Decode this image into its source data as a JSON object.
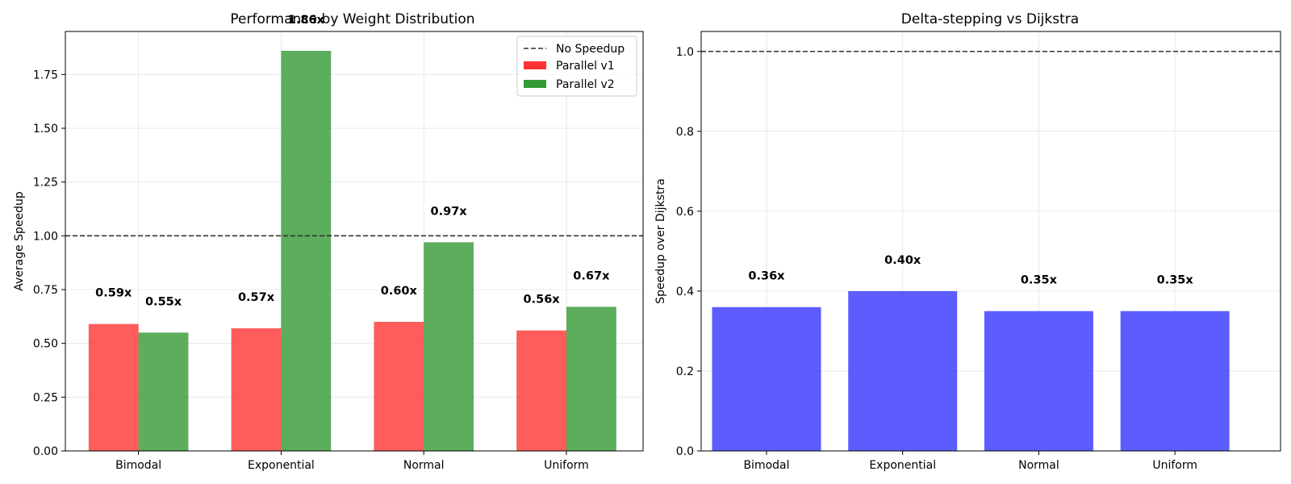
{
  "chart_data": [
    {
      "type": "bar",
      "title": "Performance by Weight Distribution",
      "xlabel": "",
      "ylabel": "Average Speedup",
      "categories": [
        "Bimodal",
        "Exponential",
        "Normal",
        "Uniform"
      ],
      "series": [
        {
          "name": "Parallel v1",
          "color": "#ff3333",
          "values": [
            0.59,
            0.57,
            0.6,
            0.56
          ]
        },
        {
          "name": "Parallel v2",
          "color": "#339933",
          "values": [
            0.55,
            1.86,
            0.97,
            0.67
          ]
        }
      ],
      "data_labels": [
        [
          "0.59x",
          "0.57x",
          "0.60x",
          "0.56x"
        ],
        [
          "0.55x",
          "1.86x",
          "0.97x",
          "0.67x"
        ]
      ],
      "reference_line": {
        "name": "No Speedup",
        "y": 1.0,
        "style": "dashed",
        "color": "#333333"
      },
      "ylim": [
        0,
        1.95
      ],
      "yticks": [
        "0.00",
        "0.25",
        "0.50",
        "0.75",
        "1.00",
        "1.25",
        "1.50",
        "1.75"
      ],
      "grid": true,
      "legend_position": "top-right"
    },
    {
      "type": "bar",
      "title": "Delta-stepping vs Dijkstra",
      "xlabel": "",
      "ylabel": "Speedup over Dijkstra",
      "categories": [
        "Bimodal",
        "Exponential",
        "Normal",
        "Uniform"
      ],
      "series": [
        {
          "name": "",
          "color": "#3333ff",
          "values": [
            0.36,
            0.4,
            0.35,
            0.35
          ]
        }
      ],
      "data_labels": [
        [
          "0.36x",
          "0.40x",
          "0.35x",
          "0.35x"
        ]
      ],
      "reference_line": {
        "name": "",
        "y": 1.0,
        "style": "dashed",
        "color": "#333333"
      },
      "ylim": [
        0,
        1.05
      ],
      "yticks": [
        "0.0",
        "0.2",
        "0.4",
        "0.6",
        "0.8",
        "1.0"
      ],
      "grid": true,
      "legend_position": "none"
    }
  ]
}
